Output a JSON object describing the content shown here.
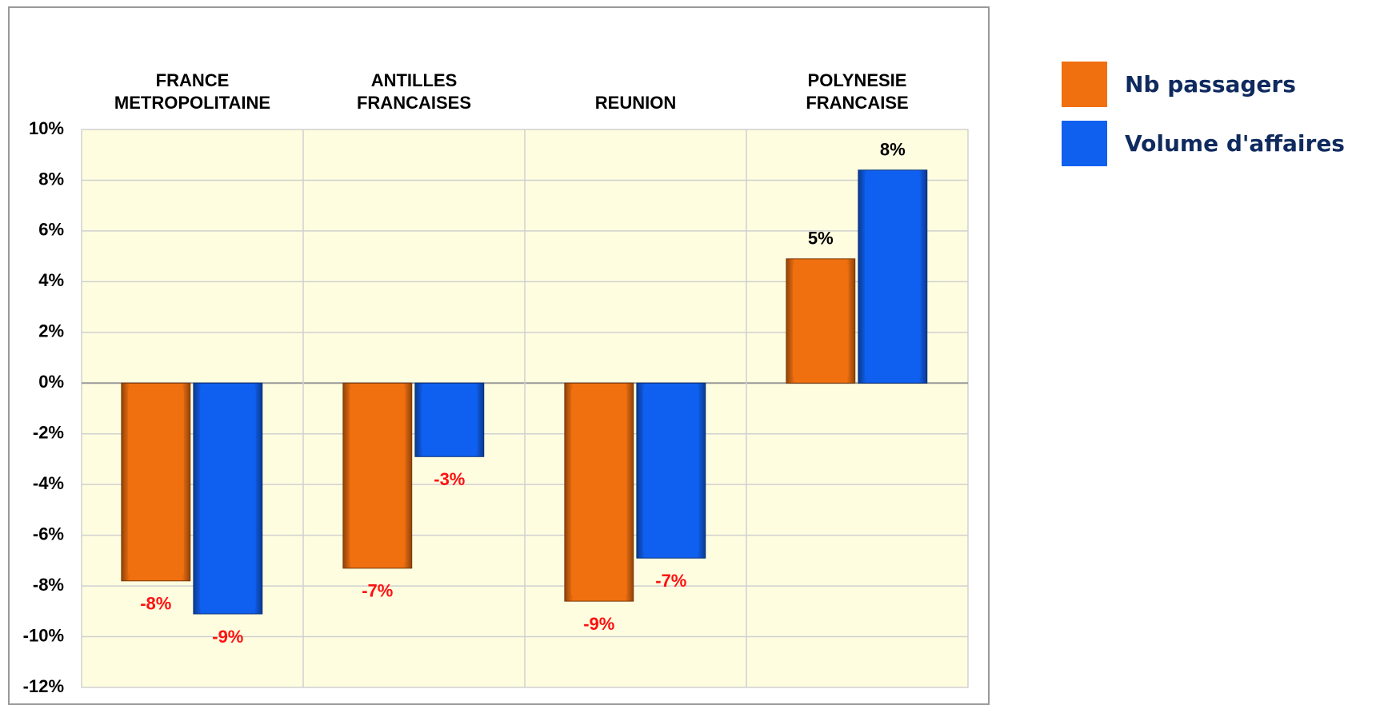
{
  "chart_data": {
    "type": "bar",
    "categories": [
      "FRANCE METROPOLITAINE",
      "ANTILLES FRANCAISES",
      "REUNION",
      "POLYNESIE FRANCAISE"
    ],
    "series": [
      {
        "name": "Nb passagers",
        "color": "#f07010",
        "values": [
          -7.8,
          -7.3,
          -8.6,
          4.9
        ],
        "value_labels": [
          "-8%",
          "-7%",
          "-9%",
          "5%"
        ]
      },
      {
        "name": "Volume d'affaires",
        "color": "#1060f0",
        "values": [
          -9.1,
          -2.9,
          -6.9,
          8.4
        ],
        "value_labels": [
          "-9%",
          "-3%",
          "-7%",
          "8%"
        ]
      }
    ],
    "ylim": [
      -12,
      10
    ],
    "yticks": [
      {
        "value": -12,
        "label": "-12%"
      },
      {
        "value": -10,
        "label": "-10%"
      },
      {
        "value": -8,
        "label": "-8%"
      },
      {
        "value": -6,
        "label": "-6%"
      },
      {
        "value": -4,
        "label": "-4%"
      },
      {
        "value": -2,
        "label": "-2%"
      },
      {
        "value": 0,
        "label": "0%"
      },
      {
        "value": 2,
        "label": "2%"
      },
      {
        "value": 4,
        "label": "4%"
      },
      {
        "value": 6,
        "label": "6%"
      },
      {
        "value": 8,
        "label": "8%"
      },
      {
        "value": 10,
        "label": "10%"
      }
    ],
    "grid": true,
    "legend": "right"
  }
}
